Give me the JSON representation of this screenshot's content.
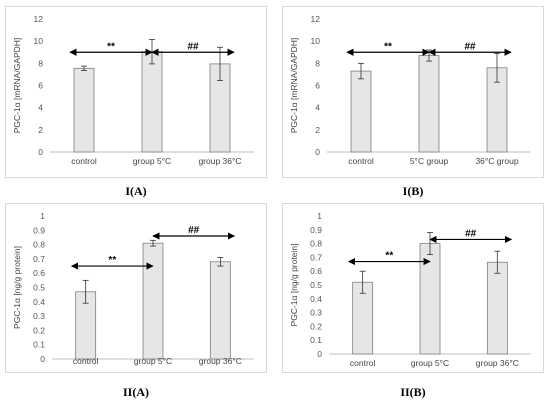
{
  "captions": [
    "I(A)",
    "I(B)",
    "II(A)",
    "II(B)"
  ],
  "chart_data": [
    {
      "type": "bar",
      "ylabel": "PGC-1α [mRNA/GAPDH]",
      "ylim": [
        0,
        12
      ],
      "yticks": [
        "0",
        "2",
        "4",
        "6",
        "8",
        "10",
        "12"
      ],
      "categories": [
        "control",
        "group 5°C",
        "group 36°C"
      ],
      "values": [
        7.55,
        9.05,
        7.95
      ],
      "errors": [
        0.2,
        1.1,
        1.5
      ],
      "annotations": [
        {
          "text": "**",
          "from": 0,
          "to": 1,
          "y": 9.0
        },
        {
          "text": "##",
          "from": 1,
          "to": 2,
          "y": 9.0
        }
      ],
      "bar_color": "#e6e6e6",
      "grid": false
    },
    {
      "type": "bar",
      "ylabel": "PGC-1α [mRNA/GAPDH]",
      "ylim": [
        0,
        12
      ],
      "yticks": [
        "0",
        "2",
        "4",
        "6",
        "8",
        "10",
        "12"
      ],
      "categories": [
        "control",
        "5°C group",
        "36°C group"
      ],
      "values": [
        7.3,
        8.7,
        7.6
      ],
      "errors": [
        0.7,
        0.5,
        1.3
      ],
      "annotations": [
        {
          "text": "**",
          "from": 0,
          "to": 1,
          "y": 9.0
        },
        {
          "text": "##",
          "from": 1,
          "to": 2,
          "y": 9.0
        }
      ],
      "bar_color": "#e6e6e6",
      "grid": false
    },
    {
      "type": "bar",
      "ylabel": "PGC-1α [ng/g protein]",
      "ylim": [
        0,
        1
      ],
      "yticks": [
        "0",
        "0.1",
        "0.2",
        "0.3",
        "0.4",
        "0.5",
        "0.6",
        "0.7",
        "0.8",
        "0.9",
        "1"
      ],
      "categories": [
        "control",
        "group 5°C",
        "group 36°C"
      ],
      "values": [
        0.47,
        0.81,
        0.68
      ],
      "errors": [
        0.08,
        0.02,
        0.03
      ],
      "annotations": [
        {
          "text": "**",
          "from": 0,
          "to": 1,
          "y": 0.65
        },
        {
          "text": "##",
          "from": 1,
          "to": 2,
          "y": 0.86
        }
      ],
      "bar_color": "#e6e6e6",
      "grid": false
    },
    {
      "type": "bar",
      "ylabel": "PGC-1α [ng/g protein]",
      "ylim": [
        0,
        1
      ],
      "yticks": [
        "0",
        "0.1",
        "0.2",
        "0.3",
        "0.4",
        "0.5",
        "0.6",
        "0.7",
        "0.8",
        "0.9",
        "1"
      ],
      "categories": [
        "control",
        "group 5°C",
        "group 36°C"
      ],
      "values": [
        0.52,
        0.8,
        0.665
      ],
      "errors": [
        0.08,
        0.08,
        0.08
      ],
      "annotations": [
        {
          "text": "**",
          "from": 0,
          "to": 1,
          "y": 0.67
        },
        {
          "text": "##",
          "from": 1,
          "to": 2,
          "y": 0.83
        }
      ],
      "bar_color": "#e6e6e6",
      "grid": false
    }
  ]
}
